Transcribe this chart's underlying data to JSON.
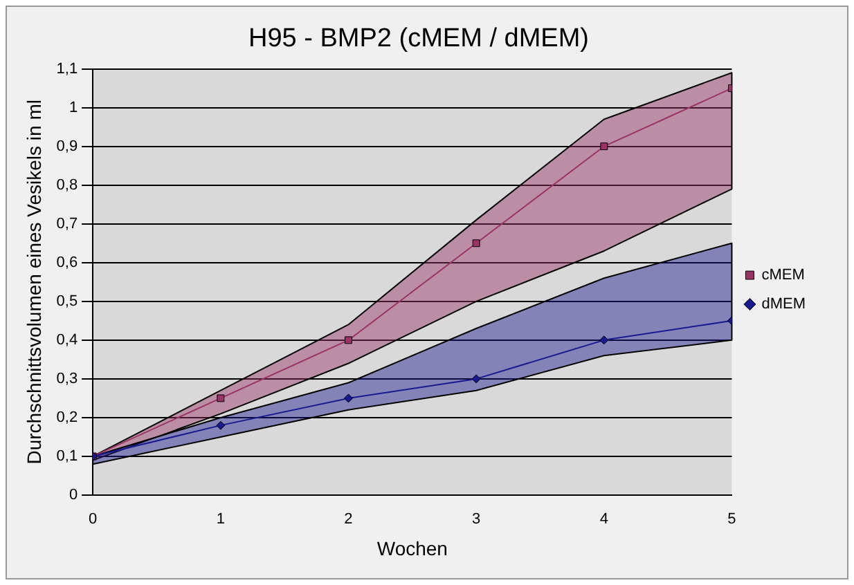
{
  "chart_data": {
    "type": "line",
    "title": "H95 - BMP2 (cMEM / dMEM)",
    "xlabel": "Wochen",
    "ylabel": "Durchschnittsvolumen eines Vesikels in ml",
    "x": [
      0,
      1,
      2,
      3,
      4,
      5
    ],
    "series": [
      {
        "name": "cMEM",
        "color": "#993366",
        "marker": "square",
        "values": [
          0.1,
          0.25,
          0.4,
          0.65,
          0.9,
          1.05
        ],
        "lower": [
          0.09,
          0.21,
          0.34,
          0.5,
          0.63,
          0.79
        ],
        "upper": [
          0.1,
          0.27,
          0.44,
          0.71,
          0.97,
          1.09
        ]
      },
      {
        "name": "dMEM",
        "color": "#1a1a90",
        "marker": "diamond",
        "values": [
          0.1,
          0.18,
          0.25,
          0.3,
          0.4,
          0.45
        ],
        "lower": [
          0.08,
          0.15,
          0.22,
          0.27,
          0.36,
          0.4
        ],
        "upper": [
          0.1,
          0.2,
          0.29,
          0.43,
          0.56,
          0.65
        ]
      }
    ],
    "xlim": [
      0,
      5
    ],
    "xticks": [
      0,
      1,
      2,
      3,
      4,
      5
    ],
    "ylim": [
      0,
      1.1
    ],
    "yticks": [
      0,
      {
        "value": 0.1,
        "label": "0,1"
      },
      {
        "value": 0.2,
        "label": "0,2"
      },
      {
        "value": 0.3,
        "label": "0,3"
      },
      {
        "value": 0.4,
        "label": "0,4"
      },
      {
        "value": 0.5,
        "label": "0,5"
      },
      {
        "value": 0.6,
        "label": "0,6"
      },
      {
        "value": 0.7,
        "label": "0,7"
      },
      {
        "value": 0.8,
        "label": "0,8"
      },
      {
        "value": 0.9,
        "label": "0,9"
      },
      1,
      {
        "value": 1.1,
        "label": "1,1"
      }
    ],
    "grid": "y",
    "legend": "right",
    "line_style": "solid"
  }
}
